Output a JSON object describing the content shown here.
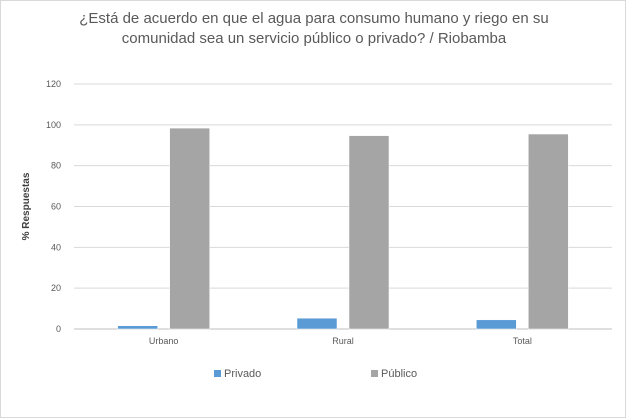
{
  "chart_data": {
    "type": "bar",
    "title": "¿Está de acuerdo en que el agua para consumo humano y riego en su comunidad sea un servicio público o privado? / Riobamba",
    "xlabel": "",
    "ylabel": "% Respuestas",
    "categories": [
      "Urbano",
      "Rural",
      "Total"
    ],
    "series": [
      {
        "name": "Privado",
        "values": [
          1.6,
          5.3,
          4.5
        ],
        "color": "#5b9bd5"
      },
      {
        "name": "Público",
        "values": [
          98.4,
          94.7,
          95.5
        ],
        "color": "#a5a5a5"
      }
    ],
    "ylim": [
      0,
      120
    ],
    "yticks": [
      0,
      20,
      40,
      60,
      80,
      100,
      120
    ],
    "grid": true,
    "legend_position": "bottom"
  }
}
